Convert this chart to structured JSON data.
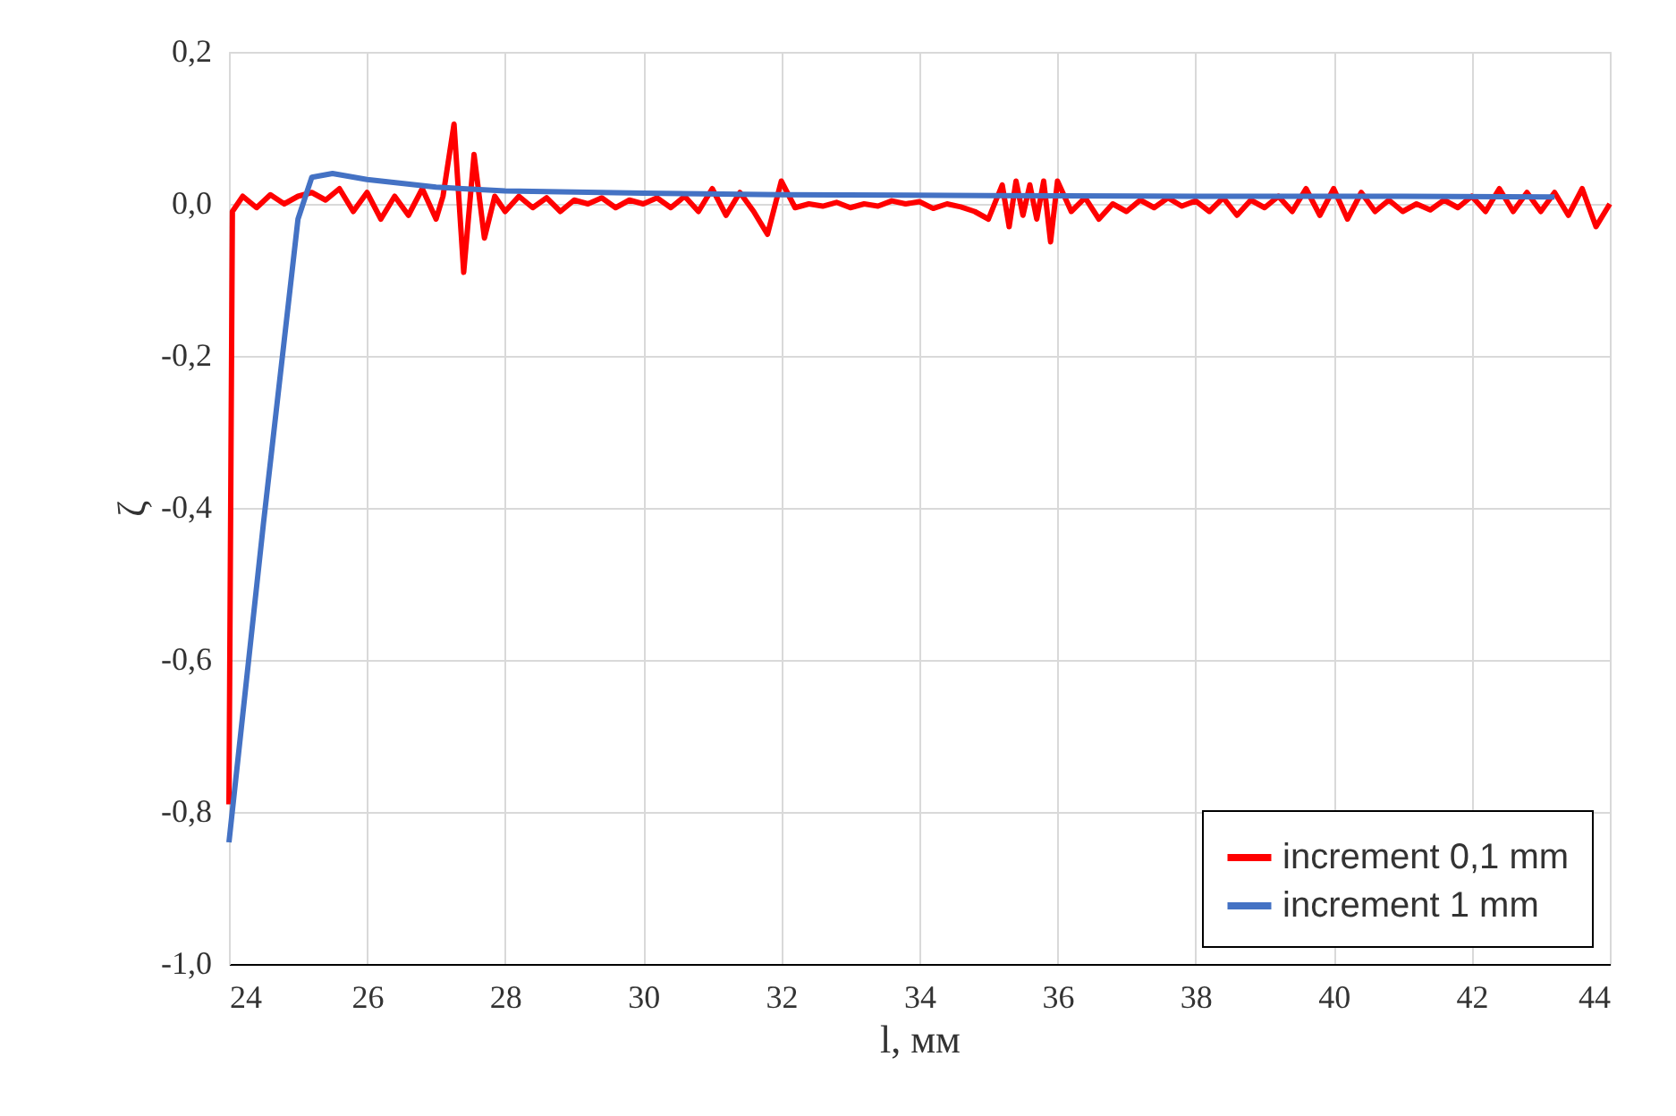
{
  "chart_data": {
    "type": "line",
    "xlabel": "l, мм",
    "ylabel": "ζ",
    "xlim": [
      24,
      44
    ],
    "xticks": [
      24,
      26,
      28,
      30,
      32,
      34,
      36,
      38,
      40,
      42,
      44
    ],
    "ylim": [
      -1.0,
      0.2
    ],
    "yticks": [
      {
        "value": -1.0,
        "label": "-1,0"
      },
      {
        "value": -0.8,
        "label": "-0,8"
      },
      {
        "value": -0.6,
        "label": "-0,6"
      },
      {
        "value": -0.4,
        "label": "-0,4"
      },
      {
        "value": -0.2,
        "label": "-0,2"
      },
      {
        "value": 0.0,
        "label": "0,0"
      },
      {
        "value": 0.2,
        "label": "0,2"
      }
    ],
    "grid": true,
    "legend": "bottom right",
    "marker": "none",
    "line_style": "solid",
    "series": [
      {
        "name": "increment 0,1 mm",
        "color": "#ff0000",
        "x": [
          24,
          24.05,
          24.2,
          24.4,
          24.6,
          24.8,
          25.0,
          25.2,
          25.4,
          25.6,
          25.8,
          26.0,
          26.2,
          26.4,
          26.6,
          26.8,
          27.0,
          27.1,
          27.26,
          27.4,
          27.55,
          27.7,
          27.85,
          28.0,
          28.2,
          28.4,
          28.6,
          28.8,
          29.0,
          29.2,
          29.4,
          29.6,
          29.8,
          30.0,
          30.2,
          30.4,
          30.6,
          30.8,
          31.0,
          31.2,
          31.4,
          31.6,
          31.8,
          32.0,
          32.2,
          32.4,
          32.6,
          32.8,
          33.0,
          33.2,
          33.4,
          33.6,
          33.8,
          34.0,
          34.2,
          34.4,
          34.6,
          34.8,
          35.0,
          35.2,
          35.3,
          35.4,
          35.5,
          35.6,
          35.7,
          35.8,
          35.9,
          36.0,
          36.2,
          36.4,
          36.6,
          36.8,
          37.0,
          37.2,
          37.4,
          37.6,
          37.8,
          38.0,
          38.2,
          38.4,
          38.6,
          38.8,
          39.0,
          39.2,
          39.4,
          39.6,
          39.8,
          40.0,
          40.2,
          40.4,
          40.6,
          40.8,
          41.0,
          41.2,
          41.4,
          41.6,
          41.8,
          42.0,
          42.2,
          42.4,
          42.6,
          42.8,
          43.0,
          43.2,
          43.4,
          43.6,
          43.8,
          44.0
        ],
        "values": [
          -0.79,
          -0.01,
          0.01,
          -0.005,
          0.012,
          0.0,
          0.01,
          0.015,
          0.005,
          0.02,
          -0.01,
          0.015,
          -0.02,
          0.01,
          -0.015,
          0.02,
          -0.02,
          0.01,
          0.105,
          -0.09,
          0.065,
          -0.045,
          0.01,
          -0.01,
          0.01,
          -0.005,
          0.008,
          -0.01,
          0.005,
          0.0,
          0.008,
          -0.005,
          0.005,
          0.0,
          0.008,
          -0.005,
          0.01,
          -0.01,
          0.02,
          -0.015,
          0.015,
          -0.01,
          -0.04,
          0.03,
          -0.005,
          0.0,
          -0.003,
          0.002,
          -0.005,
          0.0,
          -0.003,
          0.004,
          0.0,
          0.003,
          -0.006,
          0.0,
          -0.004,
          -0.01,
          -0.02,
          0.025,
          -0.03,
          0.03,
          -0.015,
          0.025,
          -0.02,
          0.03,
          -0.05,
          0.03,
          -0.01,
          0.008,
          -0.02,
          0.0,
          -0.01,
          0.005,
          -0.005,
          0.008,
          -0.003,
          0.004,
          -0.01,
          0.008,
          -0.015,
          0.005,
          -0.005,
          0.01,
          -0.01,
          0.02,
          -0.015,
          0.02,
          -0.02,
          0.015,
          -0.01,
          0.005,
          -0.01,
          0.0,
          -0.008,
          0.005,
          -0.005,
          0.01,
          -0.01,
          0.02,
          -0.01,
          0.015,
          -0.01,
          0.015,
          -0.015,
          0.02,
          -0.03,
          0.0
        ]
      },
      {
        "name": "increment 1 mm",
        "color": "#4472c4",
        "x": [
          24,
          24.5,
          25.0,
          25.2,
          25.5,
          26.0,
          27.0,
          28.0,
          30.0,
          32.0,
          35.0,
          38.0,
          41.0,
          43.2
        ],
        "values": [
          -0.84,
          -0.42,
          -0.02,
          0.035,
          0.04,
          0.032,
          0.022,
          0.017,
          0.014,
          0.012,
          0.011,
          0.01,
          0.01,
          0.009
        ]
      }
    ]
  }
}
